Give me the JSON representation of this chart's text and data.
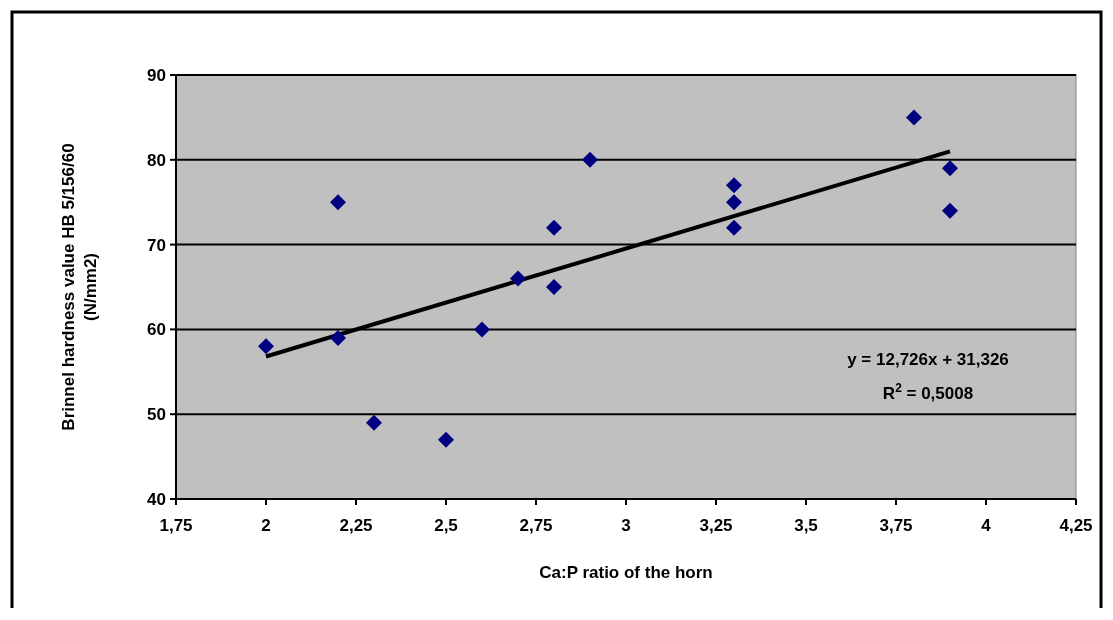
{
  "chart_data": {
    "type": "scatter",
    "xlabel": "Ca:P ratio of the horn",
    "ylabel": "Brinnel hardness value HB 5/156/60\n(N/mm2)",
    "xlim": [
      1.75,
      4.25
    ],
    "ylim": [
      40,
      90
    ],
    "xticks": [
      {
        "value": 1.75,
        "label": "1,75"
      },
      2,
      {
        "value": 2.25,
        "label": "2,25"
      },
      {
        "value": 2.5,
        "label": "2,5"
      },
      {
        "value": 2.75,
        "label": "2,75"
      },
      3,
      {
        "value": 3.25,
        "label": "3,25"
      },
      {
        "value": 3.5,
        "label": "3,5"
      },
      {
        "value": 3.75,
        "label": "3,75"
      },
      4,
      {
        "value": 4.25,
        "label": "4,25"
      }
    ],
    "yticks": [
      40,
      50,
      60,
      70,
      80,
      90
    ],
    "grid": "y",
    "series": [
      {
        "marker": "diamond",
        "color": "#000080",
        "x": [
          2,
          2.2,
          2.2,
          2.3,
          2.5,
          2.6,
          2.7,
          2.8,
          2.8,
          2.9,
          3.3,
          3.3,
          3.3,
          3.8,
          3.9,
          3.9
        ],
        "values": [
          58,
          75,
          59,
          49,
          47,
          60,
          66,
          72,
          65,
          80,
          77,
          75,
          72,
          85,
          79,
          74
        ]
      },
      {
        "type": "line",
        "marker": "none",
        "color": "#000000",
        "x": [
          2,
          3.9
        ],
        "values": [
          56.8,
          81.0
        ]
      }
    ],
    "annotations": [
      "y = 12,726x + 31,326",
      "R$^{2}$ = 0,5008"
    ]
  }
}
